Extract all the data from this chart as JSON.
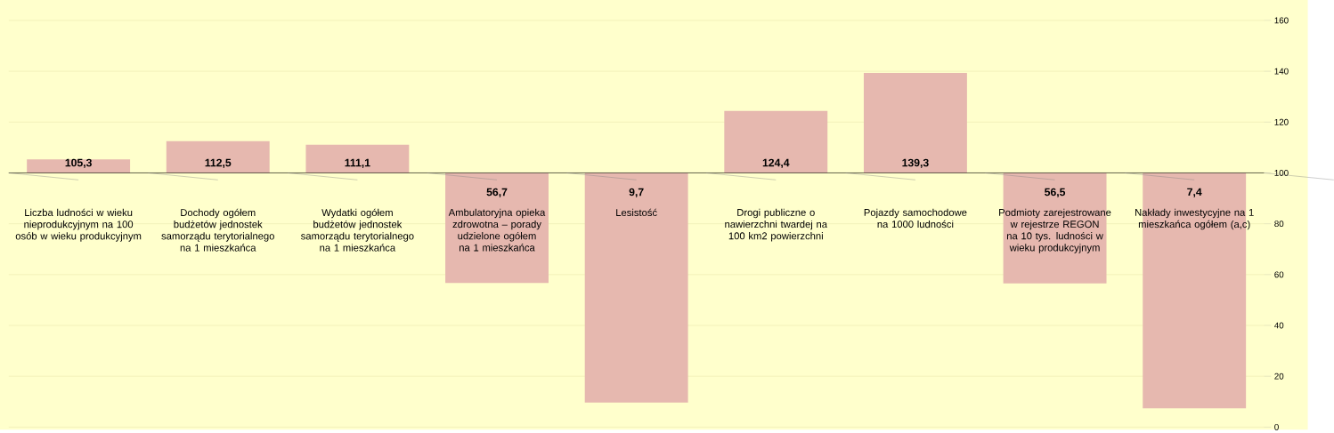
{
  "chart_data": {
    "type": "bar",
    "categories": [
      "Liczba ludności w wieku nieprodukcyjnym na 100 osób w wieku produkcyjnym",
      "Dochody ogółem budżetów jednostek samorządu terytorialnego na 1 mieszkańca",
      "Wydatki ogółem budżetów jednostek samorządu terytorialnego na 1 mieszkańca",
      "Ambulatoryjna opieka zdrowotna – porady udzielone ogółem na 1 mieszkańca",
      "Lesistość",
      "Drogi publiczne o nawierzchni twardej na 100 km2 powierzchni",
      "Pojazdy samochodowe na 1000 ludności",
      "Podmioty zarejestrowane w rejestrze REGON na 10 tys. ludności w wieku produkcyjnym",
      "Nakłady inwestycyjne na 1 mieszkańca ogółem (a,c)"
    ],
    "base": [
      100,
      100,
      100,
      100,
      100,
      100,
      100,
      100,
      100
    ],
    "values": [
      5.3,
      12.5,
      11.1,
      -43.3,
      -90.3,
      24.4,
      39.3,
      -43.5,
      -92.6
    ],
    "value_labels": [
      "105,3",
      "112,5",
      "111,1",
      "56,7",
      "9,7",
      "124,4",
      "139,3",
      "56,5",
      "7,4"
    ],
    "color": "#e6b8af",
    "ylim": [
      0,
      160
    ],
    "yticks": [
      0,
      20,
      40,
      60,
      80,
      100,
      120,
      140,
      160
    ],
    "grid": "y",
    "ref_lines": [
      {
        "axis": "y",
        "value": 100,
        "color": "#000000"
      }
    ]
  }
}
